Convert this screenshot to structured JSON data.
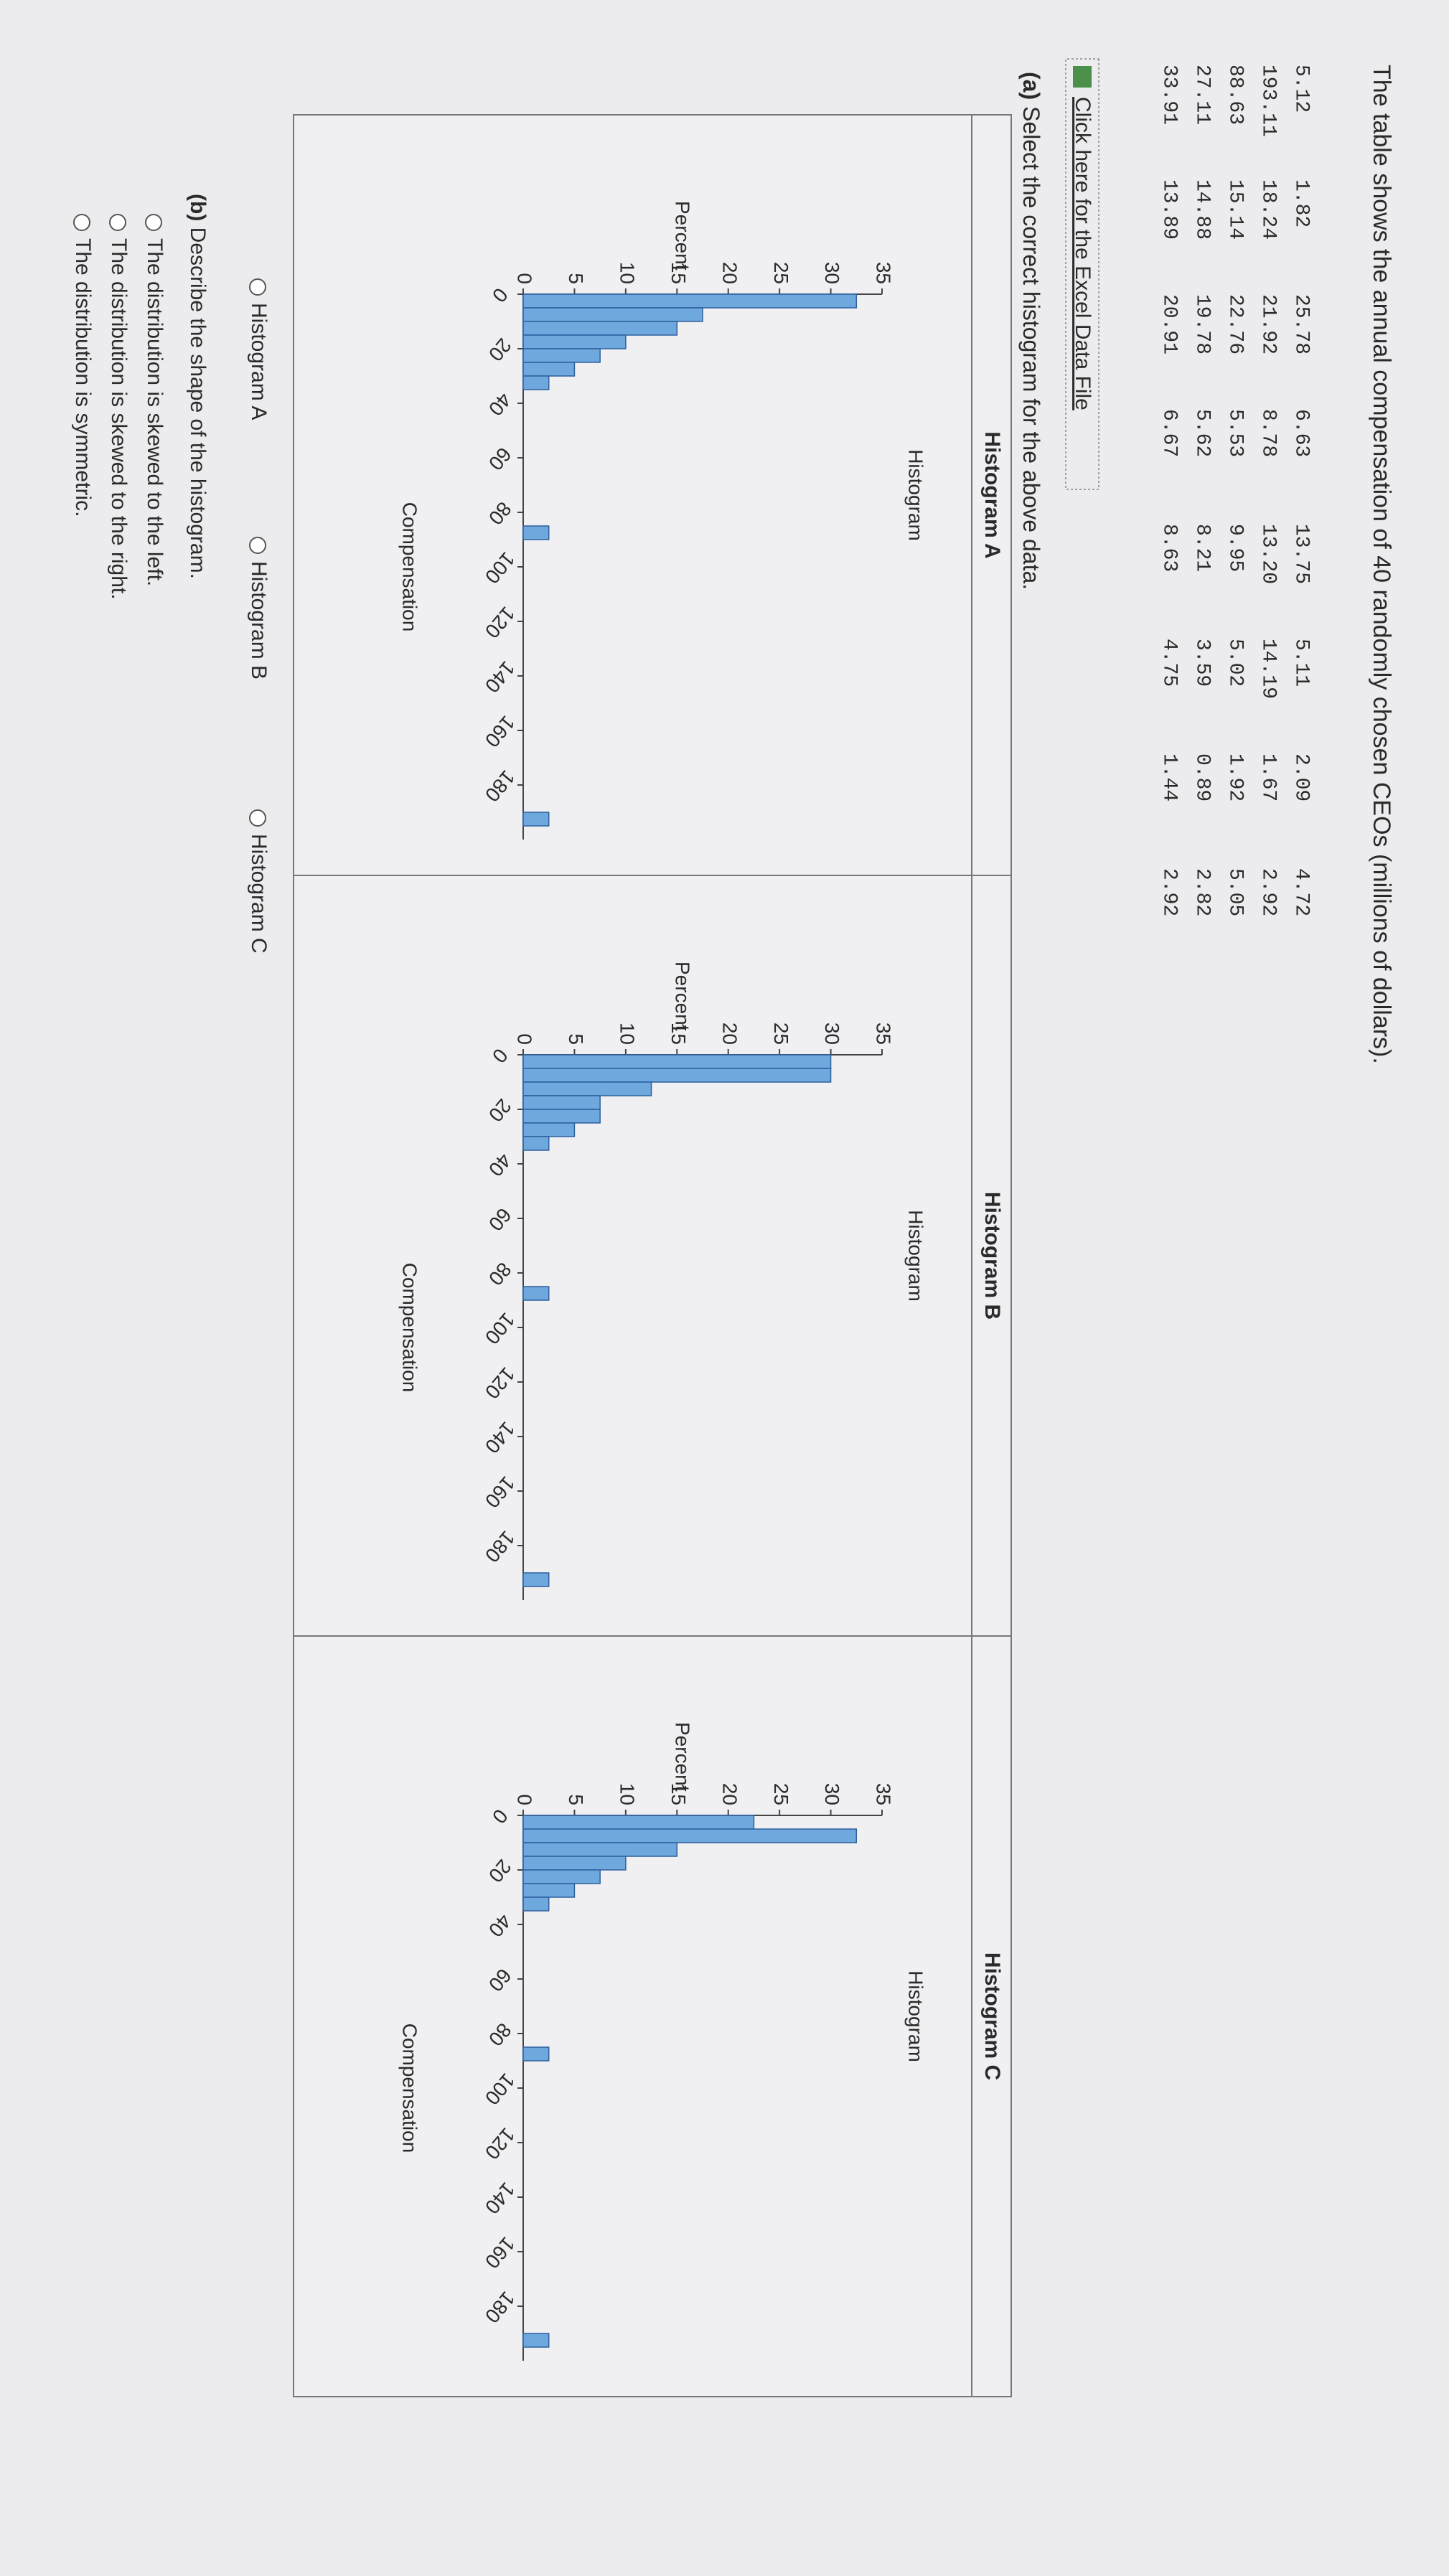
{
  "question": {
    "text": "The table shows the annual compensation of 40 randomly chosen CEOs (millions of dollars).",
    "table": [
      [
        "5.12",
        "1.82",
        "25.78",
        "6.63",
        "13.75",
        "5.11",
        "2.09",
        "4.72"
      ],
      [
        "193.11",
        "18.24",
        "21.92",
        "8.78",
        "13.20",
        "14.19",
        "1.67",
        "2.92"
      ],
      [
        "88.63",
        "15.14",
        "22.76",
        "5.53",
        "9.95",
        "5.02",
        "1.92",
        "5.05"
      ],
      [
        "27.11",
        "14.88",
        "19.78",
        "5.62",
        "8.21",
        "3.59",
        "0.89",
        "2.82"
      ],
      [
        "33.91",
        "13.89",
        "20.91",
        "6.67",
        "8.63",
        "4.75",
        "1.44",
        "2.92"
      ]
    ],
    "link": "Click here for the Excel Data File",
    "part_a": {
      "label": "(a)",
      "text": "Select the correct histogram for the above data."
    },
    "options_a": [
      "Histogram A",
      "Histogram B",
      "Histogram C"
    ],
    "part_b": {
      "label": "(b)",
      "text": "Describe the shape of the histogram."
    },
    "options_b": [
      "The distribution is skewed to the left.",
      "The distribution is skewed to the right.",
      "The distribution is symmetric."
    ]
  },
  "chart_data": [
    {
      "type": "histogram",
      "header": "Histogram A",
      "title": "Histogram",
      "x_label": "Compensation",
      "y_label": "Percent",
      "color": "#6fa8dc",
      "bins": [
        0,
        5,
        10,
        15,
        20,
        25,
        30,
        35,
        40,
        45,
        50,
        55,
        60,
        65,
        70,
        75,
        80,
        85,
        90,
        95,
        100,
        105,
        110,
        115,
        120,
        125,
        130,
        135,
        140,
        145,
        150,
        155,
        160,
        165,
        170,
        175,
        180,
        185,
        190,
        195
      ],
      "values": [
        32.5,
        17.5,
        15,
        10,
        7.5,
        5,
        2.5,
        0,
        0,
        0,
        0,
        0,
        0,
        0,
        0,
        0,
        0,
        2.5,
        0,
        0,
        0,
        0,
        0,
        0,
        0,
        0,
        0,
        0,
        0,
        0,
        0,
        0,
        0,
        0,
        0,
        0,
        0,
        0,
        2.5
      ],
      "xlim": [
        0,
        200
      ],
      "xticks": [
        0,
        20,
        40,
        60,
        80,
        100,
        120,
        140,
        160,
        180
      ],
      "ylim": [
        0,
        35
      ],
      "yticks": [
        0,
        5,
        10,
        15,
        20,
        25,
        30,
        35
      ]
    },
    {
      "type": "histogram",
      "header": "Histogram B",
      "title": "Histogram",
      "x_label": "Compensation",
      "y_label": "Percent",
      "color": "#6fa8dc",
      "bins": [
        0,
        5,
        10,
        15,
        20,
        25,
        30,
        35,
        40,
        45,
        50,
        55,
        60,
        65,
        70,
        75,
        80,
        85,
        90,
        95,
        100,
        105,
        110,
        115,
        120,
        125,
        130,
        135,
        140,
        145,
        150,
        155,
        160,
        165,
        170,
        175,
        180,
        185,
        190,
        195
      ],
      "values": [
        30,
        30,
        12.5,
        7.5,
        7.5,
        5,
        2.5,
        0,
        0,
        0,
        0,
        0,
        0,
        0,
        0,
        0,
        0,
        2.5,
        0,
        0,
        0,
        0,
        0,
        0,
        0,
        0,
        0,
        0,
        0,
        0,
        0,
        0,
        0,
        0,
        0,
        0,
        0,
        0,
        2.5
      ],
      "xlim": [
        0,
        200
      ],
      "xticks": [
        0,
        20,
        40,
        60,
        80,
        100,
        120,
        140,
        160,
        180
      ],
      "ylim": [
        0,
        35
      ],
      "yticks": [
        0,
        5,
        10,
        15,
        20,
        25,
        30,
        35
      ]
    },
    {
      "type": "histogram",
      "header": "Histogram C",
      "title": "Histogram",
      "x_label": "Compensation",
      "y_label": "Percent",
      "color": "#6fa8dc",
      "bins": [
        0,
        5,
        10,
        15,
        20,
        25,
        30,
        35,
        40,
        45,
        50,
        55,
        60,
        65,
        70,
        75,
        80,
        85,
        90,
        95,
        100,
        105,
        110,
        115,
        120,
        125,
        130,
        135,
        140,
        145,
        150,
        155,
        160,
        165,
        170,
        175,
        180,
        185,
        190,
        195
      ],
      "values": [
        22.5,
        32.5,
        15,
        10,
        7.5,
        5,
        2.5,
        0,
        0,
        0,
        0,
        0,
        0,
        0,
        0,
        0,
        0,
        2.5,
        0,
        0,
        0,
        0,
        0,
        0,
        0,
        0,
        0,
        0,
        0,
        0,
        0,
        0,
        0,
        0,
        0,
        0,
        0,
        0,
        2.5
      ],
      "xlim": [
        0,
        200
      ],
      "xticks": [
        0,
        20,
        40,
        60,
        80,
        100,
        120,
        140,
        160,
        180
      ],
      "ylim": [
        0,
        35
      ],
      "yticks": [
        0,
        5,
        10,
        15,
        20,
        25,
        30,
        35
      ]
    }
  ]
}
